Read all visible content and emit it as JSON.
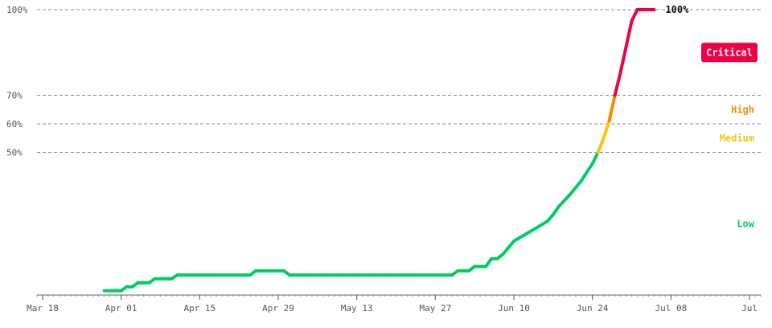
{
  "chart_data": {
    "type": "line",
    "title": "",
    "xlabel": "",
    "ylabel": "",
    "x_tick_labels": [
      "Mar 18",
      "Apr 01",
      "Apr 15",
      "Apr 29",
      "May 13",
      "May 27",
      "Jun 10",
      "Jun 24",
      "Jul 08",
      "Jul"
    ],
    "x_ticks": [
      "2024-03-18",
      "2024-04-01",
      "2024-04-15",
      "2024-04-29",
      "2024-05-13",
      "2024-05-27",
      "2024-06-10",
      "2024-06-24",
      "2024-07-08",
      "2024-07-22"
    ],
    "xlim": [
      "2024-03-17",
      "2024-07-24"
    ],
    "ylim": [
      0,
      100
    ],
    "y_gridlines": [
      {
        "value": 100,
        "label": "100%"
      },
      {
        "value": 70,
        "label": "70%"
      },
      {
        "value": 60,
        "label": "60%"
      },
      {
        "value": 50,
        "label": "50%"
      }
    ],
    "zones": [
      {
        "name": "Low",
        "from": 0,
        "to": 50,
        "color": "#00cc66",
        "label_value": 25
      },
      {
        "name": "Medium",
        "from": 50,
        "to": 60,
        "color": "#f5c518",
        "label_value": 55
      },
      {
        "name": "High",
        "from": 60,
        "to": 70,
        "color": "#f08c00",
        "label_value": 65
      },
      {
        "name": "Critical",
        "from": 70,
        "to": 100,
        "color": "#ee0044",
        "label_value": 85
      }
    ],
    "end_label": "100%",
    "series": [
      {
        "x": [
          "2024-03-29",
          "2024-03-31",
          "2024-04-01",
          "2024-04-02",
          "2024-04-03",
          "2024-04-04",
          "2024-04-05",
          "2024-04-06",
          "2024-04-07",
          "2024-04-08",
          "2024-04-09",
          "2024-04-10",
          "2024-04-11",
          "2024-04-12",
          "2024-04-15",
          "2024-04-18",
          "2024-04-21",
          "2024-04-24",
          "2024-04-25",
          "2024-04-26",
          "2024-04-29",
          "2024-04-30",
          "2024-05-01",
          "2024-05-05",
          "2024-05-10",
          "2024-05-15",
          "2024-05-20",
          "2024-05-25",
          "2024-05-30",
          "2024-05-31",
          "2024-06-01",
          "2024-06-02",
          "2024-06-03",
          "2024-06-04",
          "2024-06-05",
          "2024-06-06",
          "2024-06-07",
          "2024-06-08",
          "2024-06-09",
          "2024-06-10",
          "2024-06-12",
          "2024-06-14",
          "2024-06-16",
          "2024-06-17",
          "2024-06-18",
          "2024-06-20",
          "2024-06-22",
          "2024-06-24",
          "2024-06-25",
          "2024-06-26",
          "2024-06-27",
          "2024-06-28",
          "2024-06-29",
          "2024-06-30",
          "2024-07-01",
          "2024-07-02",
          "2024-07-03",
          "2024-07-05"
        ],
        "values": [
          1.5,
          1.5,
          1.5,
          2.9,
          2.9,
          4.3,
          4.3,
          4.3,
          5.7,
          5.7,
          5.7,
          5.7,
          7.0,
          7.0,
          7.0,
          7.0,
          7.0,
          7.0,
          8.5,
          8.5,
          8.5,
          8.5,
          7.0,
          7.0,
          7.0,
          7.0,
          7.0,
          7.0,
          7.0,
          8.5,
          8.5,
          8.5,
          10.0,
          10.0,
          10.0,
          12.7,
          12.7,
          14.2,
          16.5,
          18.9,
          21.2,
          23.5,
          25.9,
          28.2,
          31.0,
          35.2,
          40.0,
          46.0,
          50.0,
          55.0,
          61.0,
          70.0,
          78.0,
          87.0,
          96.0,
          100.0,
          100.0,
          100.0
        ]
      }
    ]
  }
}
